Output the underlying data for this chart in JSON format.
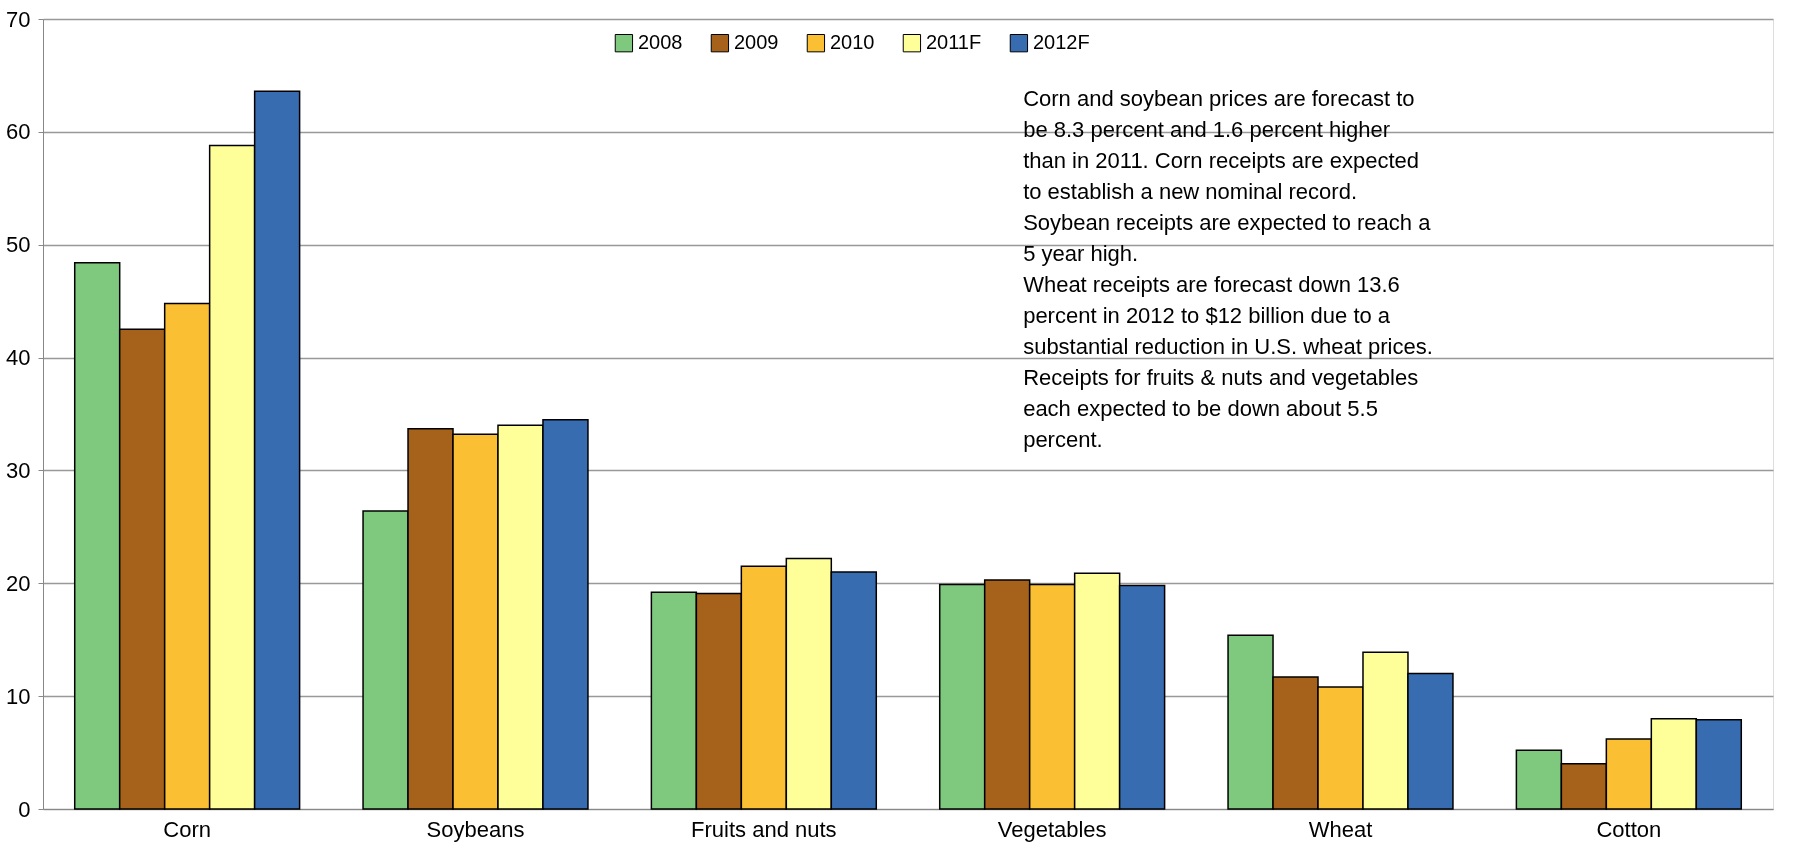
{
  "chart_data": {
    "type": "bar",
    "categories": [
      "Corn",
      "Soybeans",
      "Fruits and nuts",
      "Vegetables",
      "Wheat",
      "Cotton"
    ],
    "series": [
      {
        "name": "2008",
        "color": "#7fc97f",
        "values": [
          48.4,
          26.4,
          19.2,
          19.9,
          15.4,
          5.2
        ]
      },
      {
        "name": "2009",
        "color": "#a6611a",
        "values": [
          42.5,
          33.7,
          19.1,
          20.3,
          11.7,
          4.0
        ]
      },
      {
        "name": "2010",
        "color": "#fbbf33",
        "values": [
          44.8,
          33.2,
          21.5,
          19.9,
          10.8,
          6.2
        ]
      },
      {
        "name": "2011F",
        "color": "#ffff99",
        "values": [
          58.8,
          34.0,
          22.2,
          20.9,
          13.9,
          8.0
        ]
      },
      {
        "name": "2012F",
        "color": "#386cb0",
        "values": [
          63.6,
          34.5,
          21.0,
          19.8,
          12.0,
          7.9
        ]
      }
    ],
    "ylim": [
      0,
      70
    ],
    "yticks": [
      0,
      10,
      20,
      30,
      40,
      50,
      60,
      70
    ],
    "grid": "y",
    "legend": "top",
    "annotations": [
      "Corn and  soybean prices are forecast to\nbe 8.3 percent and 1.6 percent higher\nthan  in 2011. Corn receipts are expected\nto establish a new nominal record.\nSoybean receipts are expected to reach a\n5 year high.\nWheat receipts are  forecast down 13.6\npercent in 2012  to $12 billion due to a\nsubstantial reduction in  U.S. wheat prices.\nReceipts for fruits & nuts and vegetables\neach  expected to be down about 5.5\npercent."
    ]
  }
}
